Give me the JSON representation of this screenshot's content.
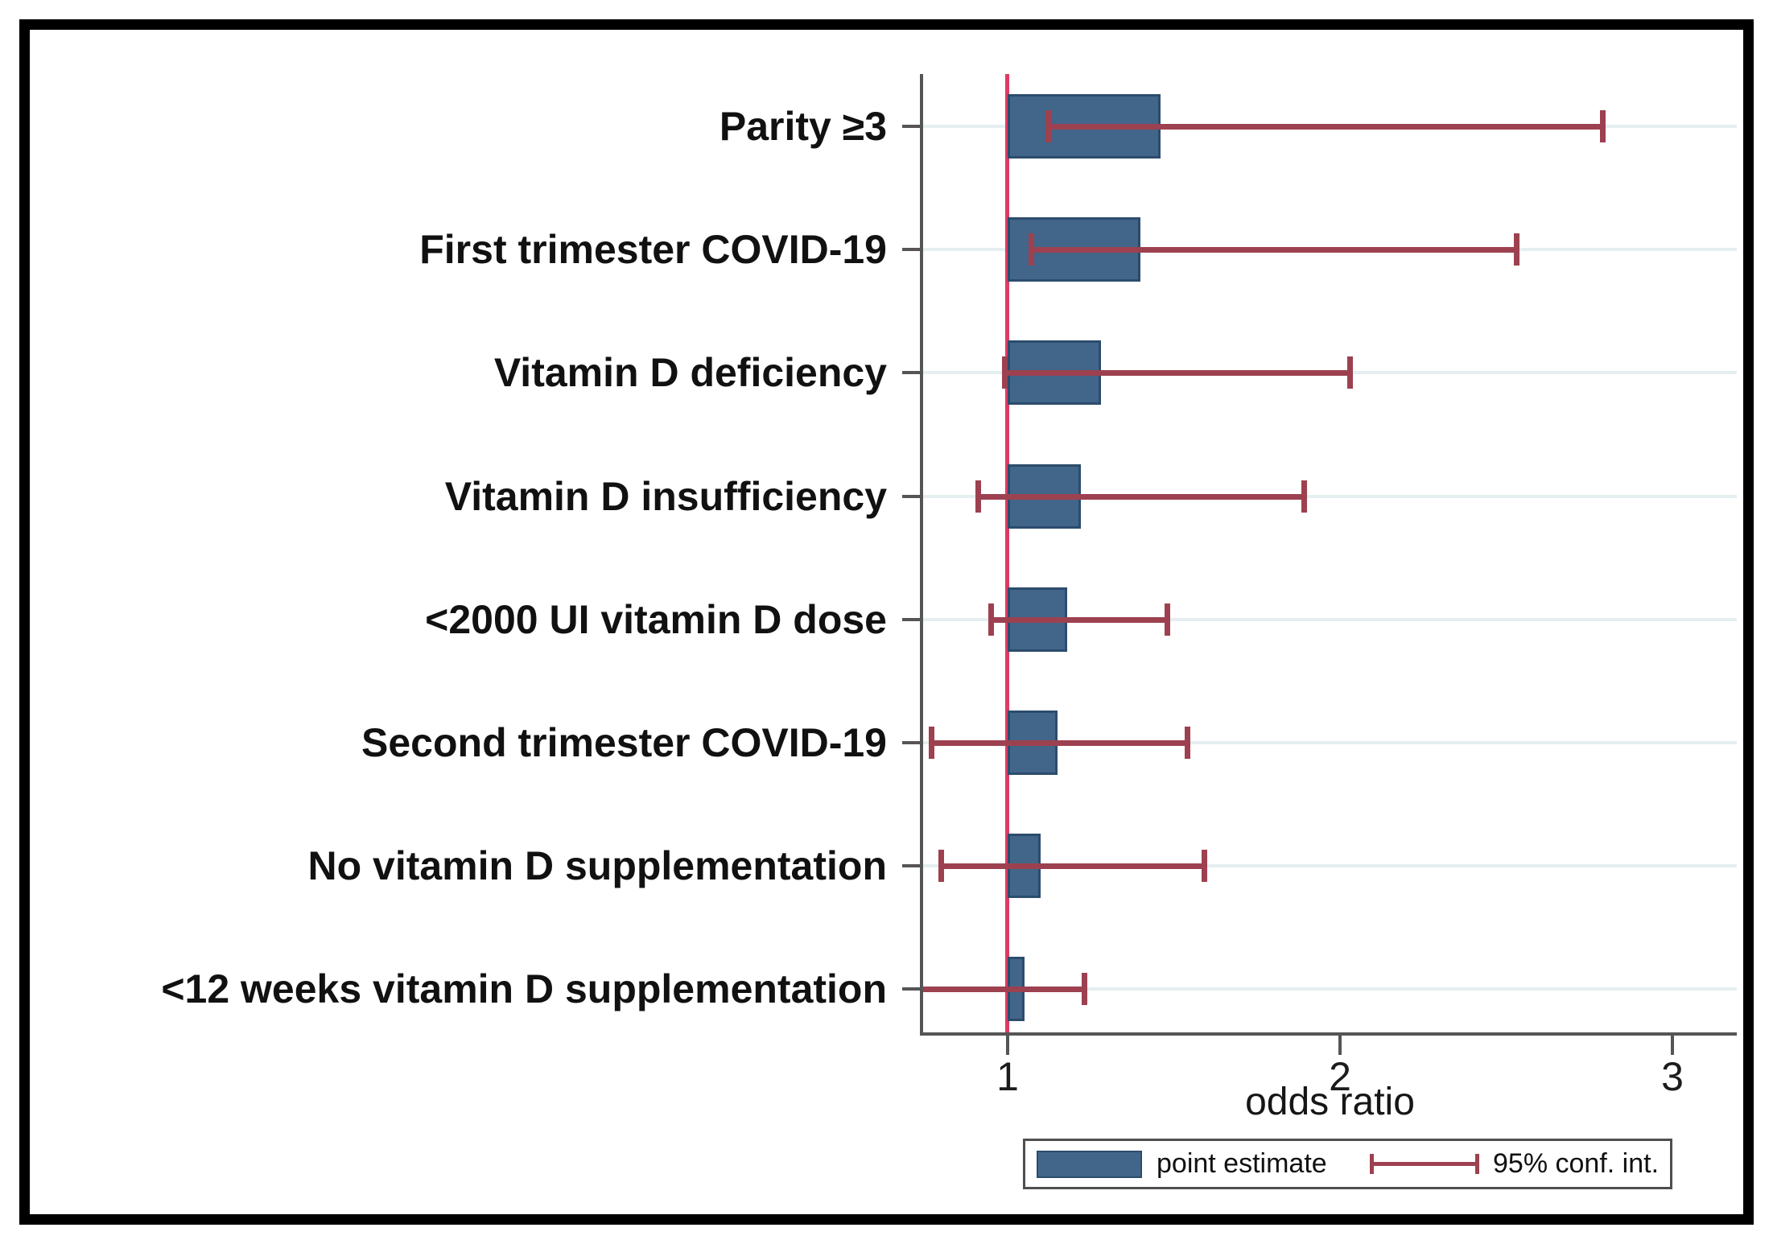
{
  "chart_data": {
    "type": "bar",
    "orientation": "horizontal",
    "title": "",
    "xlabel": "odds ratio",
    "xticks": [
      1,
      2,
      3
    ],
    "xlim": [
      0.746,
      3.19
    ],
    "baseline": 1,
    "refline_x": 1,
    "grid": "horizontal-per-category",
    "categories": [
      "Parity ≥3",
      "First trimester COVID-19",
      "Vitamin D deficiency",
      "Vitamin D insufficiency",
      "<2000 UI vitamin D dose",
      "Second trimester COVID-19",
      "No vitamin D supplementation",
      "<12 weeks vitamin D supplementation"
    ],
    "series": [
      {
        "name": "point estimate",
        "values": [
          1.46,
          1.4,
          1.28,
          1.22,
          1.18,
          1.15,
          1.1,
          1.05
        ]
      },
      {
        "name": "95% conf. int.",
        "lower": [
          1.12,
          1.07,
          0.99,
          0.91,
          0.95,
          0.77,
          0.8,
          0.74
        ],
        "upper": [
          2.79,
          2.53,
          2.03,
          1.89,
          1.48,
          1.54,
          1.59,
          1.23
        ]
      }
    ],
    "legend": {
      "position": "bottom-right",
      "entries": [
        "point estimate",
        "95% conf. int."
      ]
    },
    "colors": {
      "bar": "#426689",
      "bar_border": "#2c4c6c",
      "ci": "#9d4150",
      "refline": "#df3a62",
      "gridline": "#e5eef0",
      "axis": "#555555"
    }
  }
}
